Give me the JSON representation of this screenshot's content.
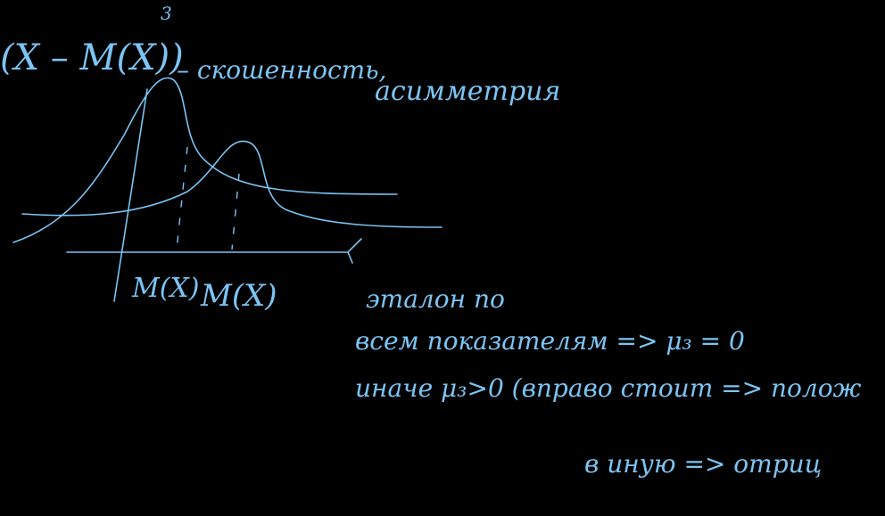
{
  "notes": {
    "formula": "(X – M(X))",
    "power": "3",
    "term": "– скошенность,",
    "term2": "асимметрия",
    "axis_labels": [
      "M(X)",
      "M(X)"
    ],
    "lines": [
      "эталон по",
      "всем показателям => μ₃ = 0",
      "иначе μ₃>0 (вправо стоит => полож",
      "в иную => отриц"
    ]
  }
}
